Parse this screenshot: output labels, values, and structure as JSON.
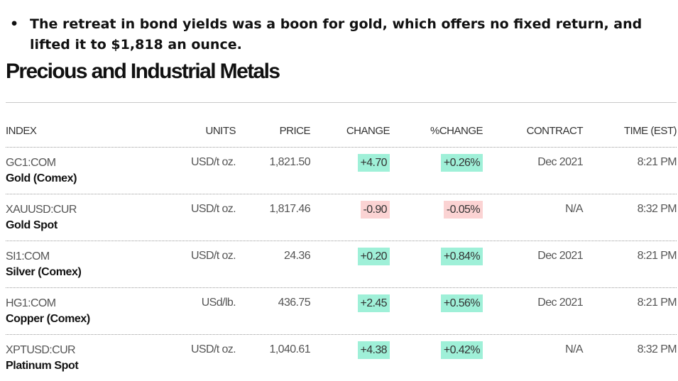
{
  "bullet": {
    "symbol": "•",
    "text": "The retreat in bond yields was a boon for gold, which offers no fixed return, and lifted it to $1,818 an ounce."
  },
  "title": "Precious and Industrial Metals",
  "columns": {
    "index": "INDEX",
    "units": "UNITS",
    "price": "PRICE",
    "change": "CHANGE",
    "pct_change": "%CHANGE",
    "contract": "CONTRACT",
    "time": "TIME (EST)"
  },
  "colors": {
    "positive": "#9ff0d8",
    "negative": "#fbd3d3"
  },
  "rows": [
    {
      "ticker": "GC1:COM",
      "name": "Gold (Comex)",
      "units": "USD/t oz.",
      "price": "1,821.50",
      "change": "+4.70",
      "pct_change": "+0.26%",
      "contract": "Dec 2021",
      "time": "8:21 PM",
      "direction": "up"
    },
    {
      "ticker": "XAUUSD:CUR",
      "name": "Gold Spot",
      "units": "USD/t oz.",
      "price": "1,817.46",
      "change": "-0.90",
      "pct_change": "-0.05%",
      "contract": "N/A",
      "time": "8:32 PM",
      "direction": "down"
    },
    {
      "ticker": "SI1:COM",
      "name": "Silver (Comex)",
      "units": "USD/t oz.",
      "price": "24.36",
      "change": "+0.20",
      "pct_change": "+0.84%",
      "contract": "Dec 2021",
      "time": "8:21 PM",
      "direction": "up"
    },
    {
      "ticker": "HG1:COM",
      "name": "Copper (Comex)",
      "units": "USd/lb.",
      "price": "436.75",
      "change": "+2.45",
      "pct_change": "+0.56%",
      "contract": "Dec 2021",
      "time": "8:21 PM",
      "direction": "up"
    },
    {
      "ticker": "XPTUSD:CUR",
      "name": "Platinum Spot",
      "units": "USD/t oz.",
      "price": "1,040.61",
      "change": "+4.38",
      "pct_change": "+0.42%",
      "contract": "N/A",
      "time": "8:32 PM",
      "direction": "up"
    }
  ]
}
